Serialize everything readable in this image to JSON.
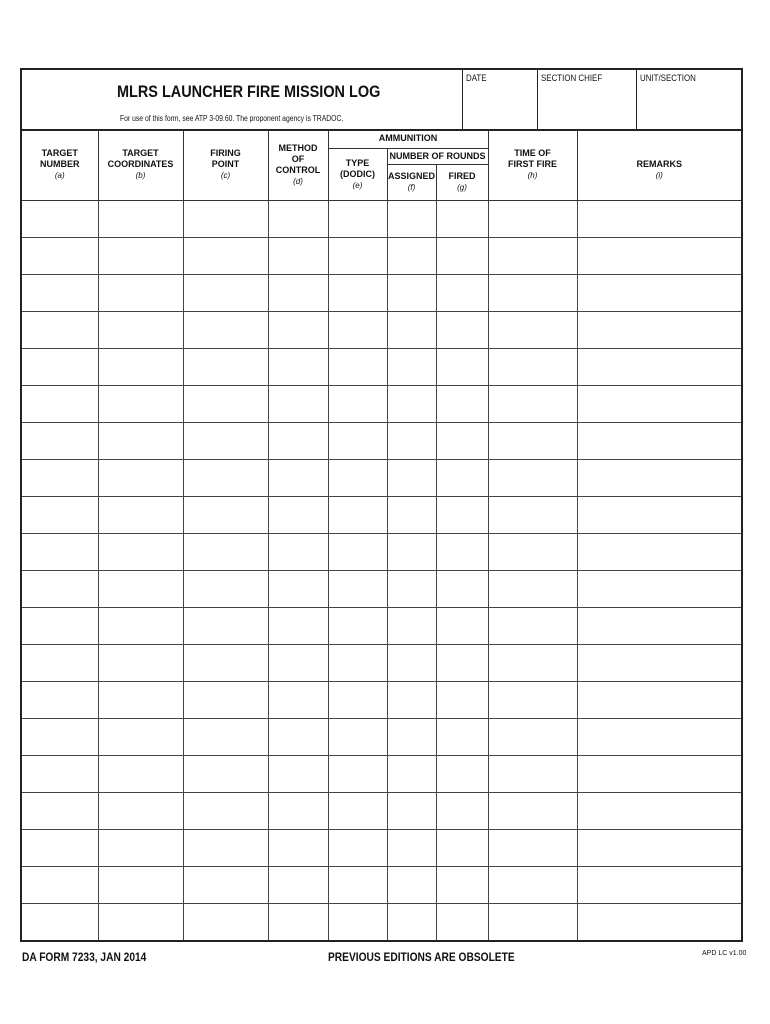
{
  "form": {
    "title": "MLRS LAUNCHER FIRE MISSION LOG",
    "subtitle": "For use of this form, see ATP 3-09.60.  The proponent agency is TRADOC.",
    "date_label": "DATE",
    "section_chief_label": "SECTION CHIEF",
    "unit_section_label": "UNIT/SECTION"
  },
  "columns": {
    "target_number": {
      "l1": "TARGET",
      "l2": "NUMBER",
      "code": "(a)"
    },
    "target_coordinates": {
      "l1": "TARGET",
      "l2": "COORDINATES",
      "code": "(b)"
    },
    "firing_point": {
      "l1": "FIRING",
      "l2": "POINT",
      "code": "(c)"
    },
    "method_of_control": {
      "l1": "METHOD",
      "l2": "OF",
      "l3": "CONTROL",
      "code": "(d)"
    },
    "ammunition": "AMMUNITION",
    "type": {
      "l1": "TYPE",
      "l2": "(DODIC)",
      "code": "(e)"
    },
    "number_of_rounds": "NUMBER OF ROUNDS",
    "assigned": {
      "l1": "ASSIGNED",
      "code": "(f)"
    },
    "fired": {
      "l1": "FIRED",
      "code": "(g)"
    },
    "time_of_first_fire": {
      "l1": "TIME OF",
      "l2": "FIRST FIRE",
      "code": "(h)"
    },
    "remarks": {
      "l1": "REMARKS",
      "code": "(i)"
    }
  },
  "row_count": 20,
  "footer": {
    "form_id": "DA FORM 7233, JAN 2014",
    "notice": "PREVIOUS EDITIONS ARE OBSOLETE",
    "version": "APD LC v1.00"
  }
}
